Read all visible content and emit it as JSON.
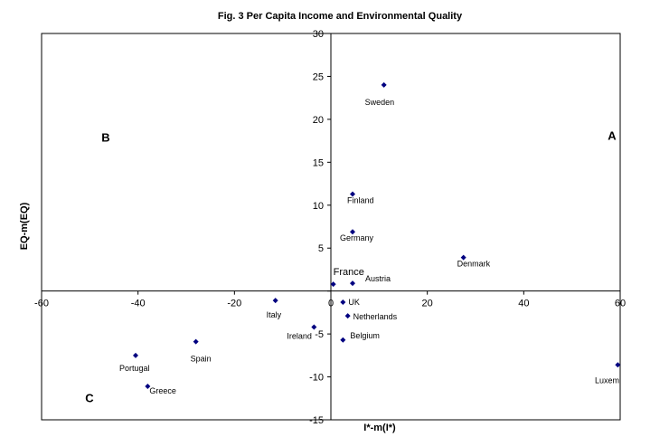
{
  "chart_data": {
    "type": "scatter",
    "title": "Fig. 3 Per Capita Income and Environmental Quality",
    "xlabel": "I*-m(I*)",
    "ylabel": "EQ-m(EQ)",
    "xlim": [
      -60,
      60
    ],
    "ylim": [
      -15,
      30
    ],
    "xticks": [
      "-60",
      "-40",
      "-20",
      "0",
      "20",
      "40",
      "60"
    ],
    "yticks": [
      "-15",
      "-10",
      "-5",
      "0",
      "5",
      "10",
      "15",
      "20",
      "25",
      "30"
    ],
    "marker_color": "#000080",
    "quadrant_labels": [
      "A",
      "B",
      "C"
    ],
    "points": [
      {
        "label": "Sweden",
        "x": 11,
        "y": 24
      },
      {
        "label": "Finland",
        "x": 4.5,
        "y": 11.3
      },
      {
        "label": "Germany",
        "x": 4.5,
        "y": 6.9
      },
      {
        "label": "Denmark",
        "x": 27.5,
        "y": 3.9
      },
      {
        "label": "France",
        "x": 0.5,
        "y": 0.8
      },
      {
        "label": "Austria",
        "x": 4.5,
        "y": 0.9
      },
      {
        "label": "UK",
        "x": 2.5,
        "y": -1.3
      },
      {
        "label": "Italy",
        "x": -11.5,
        "y": -1.1
      },
      {
        "label": "Netherlands",
        "x": 3.5,
        "y": -2.9
      },
      {
        "label": "Ireland",
        "x": -3.5,
        "y": -4.2
      },
      {
        "label": "Belgium",
        "x": 2.5,
        "y": -5.7
      },
      {
        "label": "Spain",
        "x": -28,
        "y": -5.9
      },
      {
        "label": "Portugal",
        "x": -40.5,
        "y": -7.5
      },
      {
        "label": "Greece",
        "x": -38,
        "y": -11.1
      },
      {
        "label": "Luxem",
        "x": 59.5,
        "y": -8.6
      }
    ]
  }
}
